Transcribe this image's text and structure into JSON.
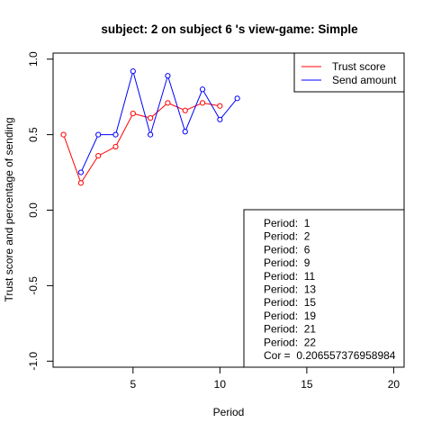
{
  "chart_data": {
    "type": "line",
    "title": "subject:  2  on subject  6 's view-game:  Simple",
    "xlabel": "Period",
    "ylabel": "Trust score and percentage of sending",
    "xlim": [
      0.4,
      20.6
    ],
    "ylim": [
      -1.04,
      1.04
    ],
    "xticks": [
      5,
      10,
      15,
      20
    ],
    "xtick_labels": [
      "5",
      "10",
      "15",
      "20"
    ],
    "yticks": [
      -1.0,
      -0.5,
      0.0,
      0.5,
      1.0
    ],
    "ytick_labels": [
      "-1.0",
      "-0.5",
      "0.0",
      "0.5",
      "1.0"
    ],
    "grid": false,
    "legend_position": "top-right",
    "series": [
      {
        "name": "Trust score",
        "color": "#ff0000",
        "x": [
          1,
          2,
          3,
          4,
          5,
          6,
          7,
          8,
          9,
          10
        ],
        "values": [
          0.5,
          0.18,
          0.36,
          0.42,
          0.64,
          0.61,
          0.71,
          0.66,
          0.71,
          0.69
        ]
      },
      {
        "name": "Send amount",
        "color": "#0000ff",
        "x": [
          2,
          3,
          4,
          5,
          6,
          7,
          8,
          9,
          10,
          11
        ],
        "values": [
          0.25,
          0.5,
          0.5,
          0.92,
          0.5,
          0.89,
          0.52,
          0.8,
          0.6,
          0.74
        ]
      }
    ],
    "info_box": {
      "lines": [
        "Period:  1",
        "Period:  2",
        "Period:  6",
        "Period:  9",
        "Period:  11",
        "Period:  13",
        "Period:  15",
        "Period:  19",
        "Period:  21",
        "Period:  22",
        "Cor =  0.206557376958984"
      ]
    }
  }
}
